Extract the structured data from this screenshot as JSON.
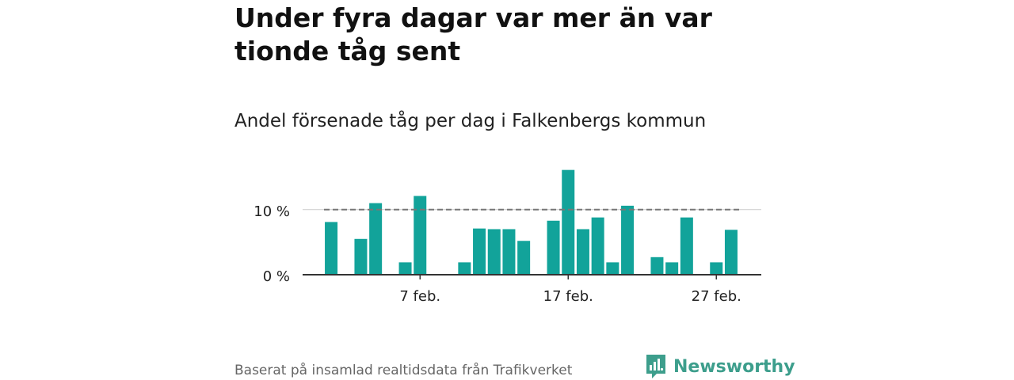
{
  "title": "Under fyra dagar var mer än var tionde tåg sent",
  "subtitle": "Andel försenade tåg per dag i Falkenbergs kommun",
  "source": "Baserat på insamlad realtidsdata från Trafikverket",
  "brand": "Newsworthy",
  "colors": {
    "bar": "#12a39a",
    "reference": "#777777",
    "axis": "#333333",
    "grid": "#cccccc",
    "brand": "#3d9e8c"
  },
  "chart_data": {
    "type": "bar",
    "x": [
      1,
      2,
      3,
      4,
      5,
      6,
      7,
      8,
      9,
      10,
      11,
      12,
      13,
      14,
      15,
      16,
      17,
      18,
      19,
      20,
      21,
      22,
      23,
      24,
      25,
      26,
      27,
      28
    ],
    "values": [
      8.1,
      0,
      5.5,
      11.0,
      0,
      1.9,
      12.1,
      0,
      0,
      1.9,
      7.1,
      7.0,
      7.0,
      5.2,
      0,
      8.3,
      16.1,
      7.0,
      8.8,
      1.9,
      10.6,
      0,
      2.7,
      1.9,
      8.8,
      0,
      1.9,
      6.9
    ],
    "ylim": [
      0,
      17
    ],
    "y_ticks": [
      {
        "value": 0,
        "label": "0 %"
      },
      {
        "value": 10,
        "label": "10 %"
      }
    ],
    "x_ticks": [
      {
        "value": 7,
        "label": "7 feb."
      },
      {
        "value": 17,
        "label": "17 feb."
      },
      {
        "value": 27,
        "label": "27 feb."
      }
    ],
    "reference_line": 10,
    "grid": "horizontal",
    "xlabel": "",
    "ylabel": ""
  }
}
